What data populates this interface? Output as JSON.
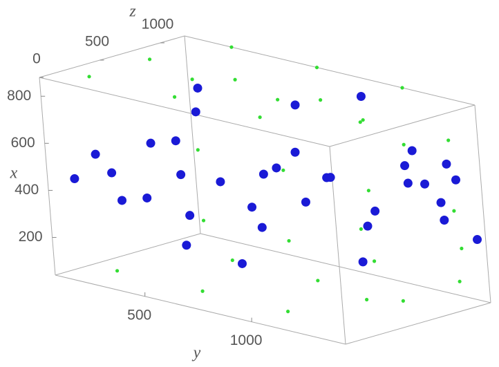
{
  "chart_data": {
    "type": "scatter3d",
    "xlabel": "x",
    "ylabel": "y",
    "zlabel": "z",
    "xlim": [
      40,
      880
    ],
    "ylim": [
      80,
      1440
    ],
    "zlim": [
      0,
      1200
    ],
    "xticks": [
      200,
      400,
      600,
      800
    ],
    "yticks": [
      500,
      1000
    ],
    "zticks": [
      0,
      500,
      1000
    ],
    "series": [
      {
        "color": "#33dd33",
        "x": [
          100,
          100,
          100,
          100,
          400,
          400,
          400,
          400,
          700,
          700,
          700,
          700,
          880,
          880,
          880,
          880,
          880,
          880,
          880,
          880,
          880,
          880,
          40,
          40,
          40,
          40,
          40,
          40,
          200,
          500,
          800,
          300
        ],
        "y": [
          100,
          500,
          900,
          1300,
          100,
          500,
          900,
          1300,
          100,
          500,
          900,
          1300,
          300,
          700,
          1100,
          200,
          600,
          1000,
          200,
          600,
          1000,
          1300,
          200,
          600,
          1000,
          400,
          800,
          1200,
          1440,
          1440,
          1440,
          1440
        ],
        "z": [
          1200,
          1200,
          1200,
          1200,
          1200,
          1200,
          1200,
          1200,
          1200,
          1200,
          1200,
          1200,
          1200,
          1200,
          1200,
          200,
          200,
          200,
          700,
          700,
          700,
          500,
          300,
          300,
          300,
          900,
          900,
          900,
          200,
          200,
          600,
          1000
        ]
      },
      {
        "color": "#1a1ad6",
        "x": [
          450,
          550,
          350,
          500,
          600,
          400,
          300,
          650,
          450,
          550,
          500,
          400,
          600,
          350,
          500,
          450,
          300,
          550,
          400,
          500,
          600,
          350,
          450,
          550,
          650,
          300,
          700,
          500,
          750,
          800,
          200,
          250,
          700,
          750,
          650,
          250
        ],
        "y": [
          150,
          200,
          250,
          300,
          350,
          400,
          450,
          500,
          550,
          600,
          700,
          750,
          800,
          850,
          900,
          950,
          1000,
          1000,
          1100,
          1150,
          1200,
          1250,
          1300,
          1350,
          1400,
          1400,
          1300,
          1200,
          700,
          900,
          800,
          600,
          400,
          300,
          1000,
          1200
        ],
        "z": [
          100,
          200,
          300,
          150,
          400,
          250,
          500,
          350,
          600,
          200,
          700,
          500,
          800,
          400,
          900,
          600,
          1000,
          700,
          900,
          1100,
          1000,
          1200,
          1100,
          1150,
          1000,
          1200,
          900,
          1150,
          1000,
          1200,
          300,
          200,
          700,
          900,
          300,
          600
        ]
      }
    ]
  }
}
